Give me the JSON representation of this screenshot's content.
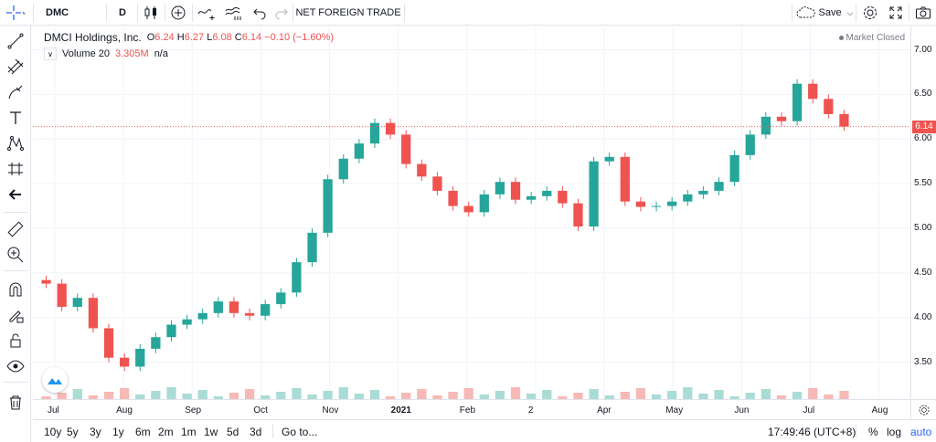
{
  "toolbar": {
    "symbol": "DMC",
    "interval": "D",
    "indicator_label": "NET FOREIGN TRADE",
    "save_label": "Save"
  },
  "legend": {
    "name": "DMCI Holdings, Inc.",
    "o_key": "O",
    "o_val": "6.24",
    "h_key": "H",
    "h_val": "6.27",
    "l_key": "L",
    "l_val": "6.08",
    "c_key": "C",
    "c_val": "6.14",
    "change": "−0.10 (−1.60%)",
    "volume_label": "Volume 20",
    "volume_value": "3.305M",
    "volume_na": "n/a",
    "market_status": "Market Closed"
  },
  "price_axis": {
    "ticks": [
      "7.00",
      "6.50",
      "6.00",
      "5.50",
      "5.00",
      "4.50",
      "4.00",
      "3.50"
    ],
    "last_price": "6.14"
  },
  "time_axis": {
    "ticks": [
      "Jul",
      "Aug",
      "Sep",
      "Oct",
      "Nov",
      "2021",
      "Feb",
      "2",
      "Apr",
      "May",
      "Jun",
      "Jul",
      "Aug"
    ]
  },
  "bottombar": {
    "ranges": [
      "10y",
      "5y",
      "3y",
      "1y",
      "6m",
      "2m",
      "1m",
      "1w",
      "5d",
      "3d"
    ],
    "goto": "Go to...",
    "clock": "17:49:46 (UTC+8)",
    "percent": "%",
    "log": "log",
    "auto": "auto"
  },
  "colors": {
    "up": "#26a69a",
    "down": "#ef5350",
    "up_volume": "#a9dcd5",
    "down_volume": "#f7b9b6",
    "grid": "#f0f3fa",
    "accent": "#2962ff"
  },
  "chart_data": {
    "type": "candlestick",
    "ylim": [
      3.25,
      7.2
    ],
    "x": [
      "Jul",
      "Jul",
      "Jul",
      "Jul",
      "Aug",
      "Aug",
      "Aug",
      "Aug",
      "Sep",
      "Sep",
      "Sep",
      "Sep",
      "Oct",
      "Oct",
      "Oct",
      "Oct",
      "Nov",
      "Nov",
      "Nov",
      "Nov",
      "Dec",
      "Dec",
      "Dec",
      "Dec",
      "2021",
      "2021",
      "2021",
      "2021",
      "Feb",
      "Feb",
      "Feb",
      "Feb",
      "2",
      "2",
      "2",
      "2",
      "Apr",
      "Apr",
      "Apr",
      "Apr",
      "May",
      "May",
      "May",
      "May",
      "Jun",
      "Jun",
      "Jun",
      "Jun",
      "Jul",
      "Jul",
      "Jul",
      "Jul"
    ],
    "series": [
      {
        "values": [
          4.38,
          4.12,
          4.22,
          3.88,
          3.55,
          3.45,
          3.65,
          3.78,
          3.92,
          3.98,
          4.05,
          4.18,
          4.05,
          4.02,
          4.15,
          4.28,
          4.62,
          4.95,
          5.55,
          5.78,
          5.95,
          6.18,
          6.05,
          5.72,
          5.58,
          5.42,
          5.25,
          5.18,
          5.38,
          5.52,
          5.32,
          5.36,
          5.42,
          5.28,
          5.02,
          5.75,
          5.8,
          5.3,
          5.24,
          5.25,
          5.3,
          5.38,
          5.42,
          5.52,
          5.82,
          6.05,
          6.25,
          6.2,
          6.62,
          6.45,
          6.28,
          6.14
        ]
      }
    ]
  }
}
